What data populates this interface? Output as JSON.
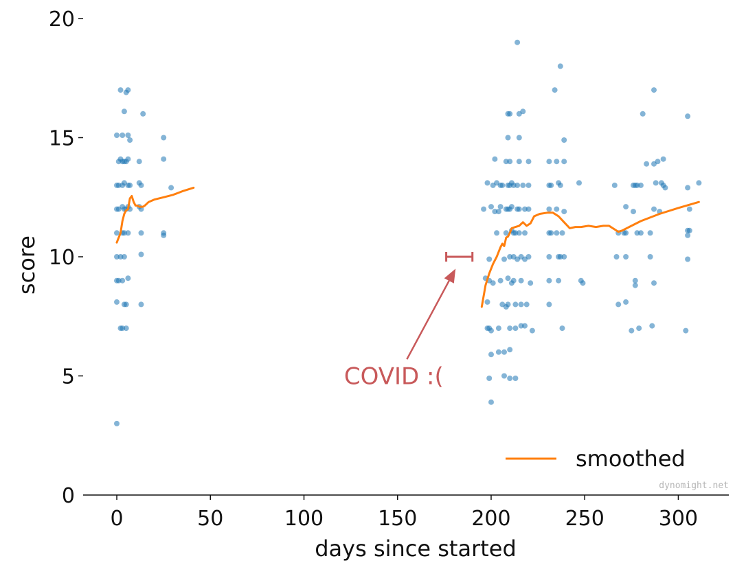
{
  "chart_data": {
    "type": "scatter",
    "xlabel": "days since started",
    "ylabel": "score",
    "xlim": [
      -18,
      327
    ],
    "ylim": [
      0,
      20
    ],
    "xticks": [
      0,
      50,
      100,
      150,
      200,
      250,
      300
    ],
    "yticks": [
      0,
      5,
      10,
      15,
      20
    ],
    "colors": {
      "points": "#1f77b4",
      "smoothed": "#ff7f0e",
      "annotation": "#c8595a"
    },
    "series": [
      {
        "name": "score",
        "kind": "points",
        "points": [
          [
            0,
            3
          ],
          [
            0,
            8.1
          ],
          [
            0,
            9
          ],
          [
            0,
            10
          ],
          [
            0,
            11
          ],
          [
            0,
            12
          ],
          [
            0,
            13
          ],
          [
            0,
            15.1
          ],
          [
            1,
            9
          ],
          [
            1,
            12
          ],
          [
            1,
            13
          ],
          [
            1,
            14
          ],
          [
            2,
            7
          ],
          [
            2,
            17
          ],
          [
            2,
            14.1
          ],
          [
            2,
            10
          ],
          [
            3,
            7
          ],
          [
            3,
            11
          ],
          [
            3,
            12.1
          ],
          [
            3,
            13
          ],
          [
            3,
            14
          ],
          [
            3,
            15.1
          ],
          [
            3,
            9
          ],
          [
            4,
            8
          ],
          [
            4,
            10
          ],
          [
            4,
            12
          ],
          [
            4,
            13.1
          ],
          [
            4,
            14
          ],
          [
            4,
            16.1
          ],
          [
            4,
            11
          ],
          [
            5,
            7
          ],
          [
            5,
            8
          ],
          [
            5,
            12
          ],
          [
            5,
            14
          ],
          [
            5,
            16.9
          ],
          [
            6,
            9.1
          ],
          [
            6,
            11
          ],
          [
            6,
            12.1
          ],
          [
            6,
            13
          ],
          [
            6,
            14.1
          ],
          [
            6,
            15.1
          ],
          [
            6,
            17
          ],
          [
            7,
            12
          ],
          [
            7,
            13
          ],
          [
            7,
            14.9
          ],
          [
            12,
            12.1
          ],
          [
            12,
            13.1
          ],
          [
            12,
            14
          ],
          [
            13,
            8
          ],
          [
            13,
            10.1
          ],
          [
            13,
            11
          ],
          [
            13,
            12
          ],
          [
            13,
            13
          ],
          [
            14,
            16
          ],
          [
            25,
            11
          ],
          [
            25,
            10.9
          ],
          [
            25,
            14.1
          ],
          [
            25,
            15
          ],
          [
            29,
            12.9
          ],
          [
            196,
            12
          ],
          [
            197,
            9.1
          ],
          [
            198,
            8.1
          ],
          [
            198,
            7
          ],
          [
            198,
            13.1
          ],
          [
            199,
            4.9
          ],
          [
            199,
            9.9
          ],
          [
            199,
            7
          ],
          [
            199,
            9
          ],
          [
            200,
            3.9
          ],
          [
            200,
            5.9
          ],
          [
            200,
            6.9
          ],
          [
            200,
            12.1
          ],
          [
            201,
            13
          ],
          [
            201,
            8.9
          ],
          [
            202,
            14.1
          ],
          [
            202,
            11.9
          ],
          [
            203,
            11
          ],
          [
            203,
            13.1
          ],
          [
            204,
            11.9
          ],
          [
            204,
            7
          ],
          [
            204,
            6
          ],
          [
            205,
            9
          ],
          [
            205,
            12.1
          ],
          [
            205,
            13
          ],
          [
            206,
            13
          ],
          [
            206,
            8
          ],
          [
            207,
            5
          ],
          [
            207,
            9.9
          ],
          [
            207,
            6
          ],
          [
            208,
            12
          ],
          [
            208,
            7.9
          ],
          [
            208,
            11
          ],
          [
            208,
            14
          ],
          [
            209,
            16
          ],
          [
            209,
            12
          ],
          [
            209,
            9.1
          ],
          [
            209,
            8
          ],
          [
            209,
            15
          ],
          [
            209,
            13
          ],
          [
            210,
            4.9
          ],
          [
            210,
            6.1
          ],
          [
            210,
            7
          ],
          [
            210,
            10
          ],
          [
            210,
            12
          ],
          [
            210,
            13
          ],
          [
            210,
            14
          ],
          [
            210,
            16
          ],
          [
            211,
            8.9
          ],
          [
            211,
            11.1
          ],
          [
            211,
            12.1
          ],
          [
            211,
            13.1
          ],
          [
            212,
            9
          ],
          [
            212,
            10
          ],
          [
            212,
            11
          ],
          [
            212,
            13
          ],
          [
            213,
            4.9
          ],
          [
            213,
            7
          ],
          [
            213,
            8
          ],
          [
            213,
            11
          ],
          [
            214,
            19
          ],
          [
            214,
            12
          ],
          [
            214,
            9.9
          ],
          [
            214,
            13
          ],
          [
            215,
            15
          ],
          [
            215,
            14
          ],
          [
            215,
            11
          ],
          [
            215,
            12
          ],
          [
            215,
            16
          ],
          [
            216,
            8
          ],
          [
            216,
            9
          ],
          [
            216,
            10
          ],
          [
            216,
            7.1
          ],
          [
            217,
            13
          ],
          [
            217,
            16.1
          ],
          [
            218,
            11
          ],
          [
            218,
            7.1
          ],
          [
            218,
            9.9
          ],
          [
            218,
            12
          ],
          [
            219,
            8
          ],
          [
            220,
            13
          ],
          [
            220,
            12
          ],
          [
            220,
            14
          ],
          [
            220,
            10
          ],
          [
            221,
            8.9
          ],
          [
            222,
            6.9
          ],
          [
            231,
            14
          ],
          [
            231,
            13
          ],
          [
            231,
            12
          ],
          [
            231,
            11
          ],
          [
            231,
            9
          ],
          [
            231,
            8
          ],
          [
            231,
            10
          ],
          [
            232,
            13
          ],
          [
            232,
            11
          ],
          [
            234,
            17
          ],
          [
            235,
            14
          ],
          [
            235,
            12
          ],
          [
            235,
            11
          ],
          [
            236,
            13.1
          ],
          [
            236,
            10
          ],
          [
            236,
            9
          ],
          [
            237,
            18
          ],
          [
            237,
            13
          ],
          [
            237,
            10
          ],
          [
            238,
            11
          ],
          [
            238,
            7
          ],
          [
            239,
            14.9
          ],
          [
            239,
            11.9
          ],
          [
            239,
            14
          ],
          [
            239,
            10
          ],
          [
            247,
            13.1
          ],
          [
            248,
            9
          ],
          [
            249,
            8.9
          ],
          [
            266,
            13
          ],
          [
            267,
            10
          ],
          [
            268,
            11
          ],
          [
            268,
            8
          ],
          [
            271,
            11
          ],
          [
            272,
            12.1
          ],
          [
            272,
            11
          ],
          [
            272,
            10
          ],
          [
            272,
            8.1
          ],
          [
            275,
            6.9
          ],
          [
            276,
            13
          ],
          [
            276,
            11.9
          ],
          [
            277,
            9
          ],
          [
            277,
            8.8
          ],
          [
            277,
            13
          ],
          [
            278,
            13
          ],
          [
            278,
            11
          ],
          [
            279,
            7
          ],
          [
            280,
            11
          ],
          [
            280,
            13
          ],
          [
            281,
            16
          ],
          [
            283,
            13.9
          ],
          [
            285,
            11
          ],
          [
            285,
            10
          ],
          [
            286,
            7.1
          ],
          [
            287,
            17
          ],
          [
            287,
            12
          ],
          [
            287,
            8.9
          ],
          [
            287,
            13.9
          ],
          [
            288,
            13.1
          ],
          [
            289,
            14
          ],
          [
            290,
            11.9
          ],
          [
            291,
            13.1
          ],
          [
            292,
            13
          ],
          [
            292,
            14.1
          ],
          [
            293,
            12.9
          ],
          [
            304,
            6.9
          ],
          [
            305,
            12.9
          ],
          [
            305,
            11.1
          ],
          [
            305,
            10.9
          ],
          [
            305,
            15.9
          ],
          [
            305,
            9.9
          ],
          [
            306,
            11.1
          ],
          [
            306,
            12
          ],
          [
            311,
            13.1
          ]
        ]
      },
      {
        "name": "smoothed",
        "kind": "line",
        "segments": [
          [
            [
              0,
              10.6
            ],
            [
              2,
              11.0
            ],
            [
              3,
              11.5
            ],
            [
              4,
              11.8
            ],
            [
              5,
              11.95
            ],
            [
              6,
              12.0
            ],
            [
              7,
              12.45
            ],
            [
              8,
              12.55
            ],
            [
              9,
              12.3
            ],
            [
              10,
              12.15
            ],
            [
              11,
              12.15
            ],
            [
              12,
              12.1
            ],
            [
              14,
              12.1
            ],
            [
              15,
              12.15
            ],
            [
              17,
              12.3
            ],
            [
              20,
              12.4
            ],
            [
              25,
              12.5
            ],
            [
              30,
              12.6
            ],
            [
              35,
              12.75
            ],
            [
              41,
              12.9
            ]
          ],
          [
            [
              195,
              7.9
            ],
            [
              197,
              8.8
            ],
            [
              199,
              9.3
            ],
            [
              201,
              9.7
            ],
            [
              203,
              10.0
            ],
            [
              205,
              10.4
            ],
            [
              206,
              10.55
            ],
            [
              207,
              10.45
            ],
            [
              208,
              10.8
            ],
            [
              209,
              10.85
            ],
            [
              210,
              11.0
            ],
            [
              211,
              11.2
            ],
            [
              213,
              11.25
            ],
            [
              215,
              11.3
            ],
            [
              217,
              11.45
            ],
            [
              219,
              11.3
            ],
            [
              221,
              11.4
            ],
            [
              223,
              11.7
            ],
            [
              226,
              11.8
            ],
            [
              230,
              11.85
            ],
            [
              233,
              11.85
            ],
            [
              236,
              11.7
            ],
            [
              239,
              11.45
            ],
            [
              242,
              11.2
            ],
            [
              245,
              11.25
            ],
            [
              248,
              11.25
            ],
            [
              252,
              11.3
            ],
            [
              256,
              11.25
            ],
            [
              260,
              11.3
            ],
            [
              263,
              11.3
            ],
            [
              266,
              11.15
            ],
            [
              268,
              11.05
            ],
            [
              270,
              11.1
            ],
            [
              275,
              11.3
            ],
            [
              280,
              11.5
            ],
            [
              290,
              11.8
            ],
            [
              300,
              12.05
            ],
            [
              311,
              12.3
            ]
          ]
        ]
      }
    ],
    "annotations": [
      {
        "text": "COVID :(",
        "text_at": [
          148,
          5
        ],
        "arrow_from": [
          155,
          5.7
        ],
        "arrow_to": [
          181,
          9.5
        ]
      }
    ],
    "covid_range": {
      "x": [
        176,
        190
      ],
      "y": 10
    },
    "legend": {
      "entries": [
        "smoothed"
      ],
      "position": "lower-right"
    },
    "grid": false,
    "watermark": "dynomight.net"
  }
}
